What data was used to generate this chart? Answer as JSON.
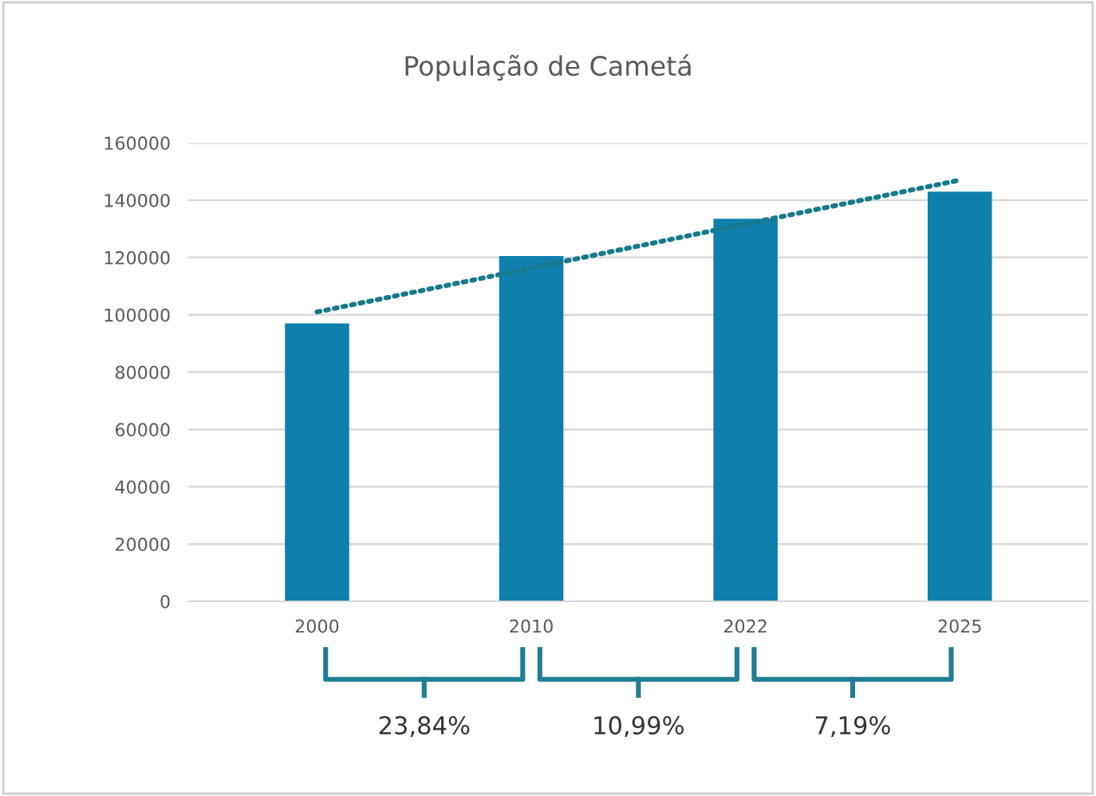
{
  "chart_data": {
    "type": "bar",
    "title": "População de Cametá",
    "categories": [
      "2000",
      "2010",
      "2022",
      "2025"
    ],
    "series": [
      {
        "color": "#0f80ad",
        "values": [
          97000,
          120500,
          133500,
          143000
        ]
      },
      {
        "type": "line",
        "color": "#17798c",
        "line_style": "dotted",
        "values": [
          101000,
          116300,
          131700,
          147000
        ]
      }
    ],
    "ylim": [
      0,
      160000
    ],
    "yticks": [
      0,
      20000,
      40000,
      60000,
      80000,
      100000,
      120000,
      140000,
      160000
    ],
    "grid": "y",
    "annotations": [
      "23,84%",
      "10,99%",
      "7,19%"
    ]
  }
}
